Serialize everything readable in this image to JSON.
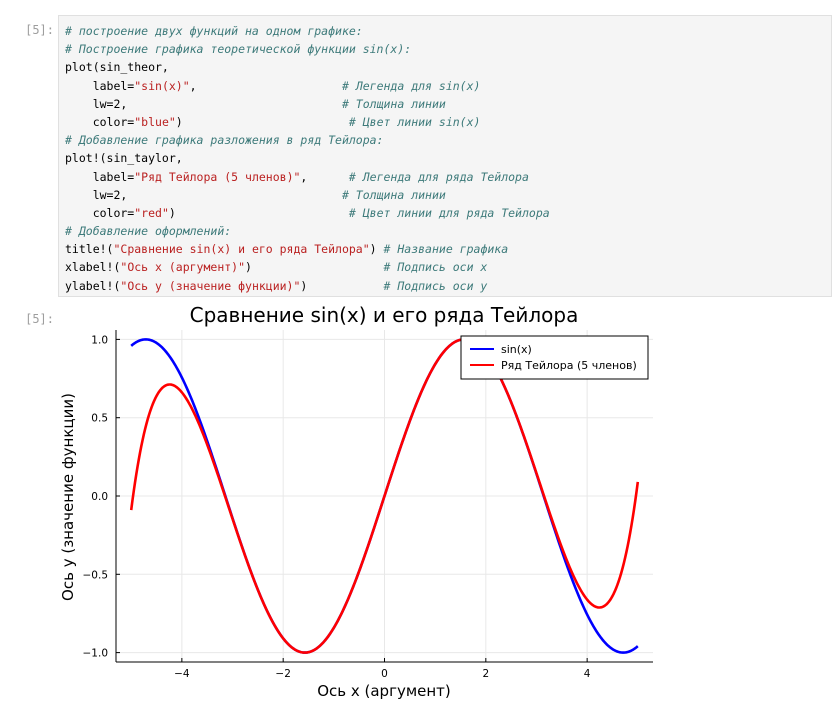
{
  "cell": {
    "in_prompt": "[5]:",
    "out_prompt": "[5]:",
    "code_lines": [
      [
        {
          "t": "# построение двух функций на одном графике:",
          "c": "cm"
        }
      ],
      [
        {
          "t": "# Построение графика теоретической функции sin(x):",
          "c": "cm"
        }
      ],
      [
        {
          "t": "plot(sin_theor,",
          "c": "kw"
        }
      ],
      [
        {
          "t": "    label=",
          "c": "kw"
        },
        {
          "t": "\"sin(x)\"",
          "c": "st"
        },
        {
          "t": ",                     ",
          "c": "kw"
        },
        {
          "t": "# Легенда для sin(x)",
          "c": "cm"
        }
      ],
      [
        {
          "t": "    lw=2,                               ",
          "c": "kw"
        },
        {
          "t": "# Толщина линии",
          "c": "cm"
        }
      ],
      [
        {
          "t": "    color=",
          "c": "kw"
        },
        {
          "t": "\"blue\"",
          "c": "st"
        },
        {
          "t": ")                        ",
          "c": "kw"
        },
        {
          "t": "# Цвет линии sin(x)",
          "c": "cm"
        }
      ],
      [
        {
          "t": "# Добавление графика разложения в ряд Тейлора:",
          "c": "cm"
        }
      ],
      [
        {
          "t": "plot!(sin_taylor,",
          "c": "kw"
        }
      ],
      [
        {
          "t": "    label=",
          "c": "kw"
        },
        {
          "t": "\"Ряд Тейлора (5 членов)\"",
          "c": "st"
        },
        {
          "t": ",      ",
          "c": "kw"
        },
        {
          "t": "# Легенда для ряда Тейлора",
          "c": "cm"
        }
      ],
      [
        {
          "t": "    lw=2,                               ",
          "c": "kw"
        },
        {
          "t": "# Толщина линии",
          "c": "cm"
        }
      ],
      [
        {
          "t": "    color=",
          "c": "kw"
        },
        {
          "t": "\"red\"",
          "c": "st"
        },
        {
          "t": ")                         ",
          "c": "kw"
        },
        {
          "t": "# Цвет линии для ряда Тейлора",
          "c": "cm"
        }
      ],
      [
        {
          "t": "# Добавление оформлений:",
          "c": "cm"
        }
      ],
      [
        {
          "t": "title!(",
          "c": "kw"
        },
        {
          "t": "\"Сравнение sin(x) и его ряда Тейлора\"",
          "c": "st"
        },
        {
          "t": ") ",
          "c": "kw"
        },
        {
          "t": "# Название графика",
          "c": "cm"
        }
      ],
      [
        {
          "t": "xlabel!(",
          "c": "kw"
        },
        {
          "t": "\"Ось x (аргумент)\"",
          "c": "st"
        },
        {
          "t": ")                   ",
          "c": "kw"
        },
        {
          "t": "# Подпись оси x",
          "c": "cm"
        }
      ],
      [
        {
          "t": "ylabel!(",
          "c": "kw"
        },
        {
          "t": "\"Ось y (значение функции)\"",
          "c": "st"
        },
        {
          "t": ")           ",
          "c": "kw"
        },
        {
          "t": "# Подпись оси y",
          "c": "cm"
        }
      ]
    ]
  },
  "chart_data": {
    "type": "line",
    "title": "Сравнение sin(x) и его ряда Тейлора",
    "xlabel": "Ось x (аргумент)",
    "ylabel": "Ось y (значение функции)",
    "xlim": [
      -5.3,
      5.3
    ],
    "ylim": [
      -1.06,
      1.06
    ],
    "grid": true,
    "legend_position": "top-right",
    "xticks": [
      -4,
      -2,
      0,
      2,
      4
    ],
    "xtick_labels": [
      "−4",
      "−2",
      "0",
      "2",
      "4"
    ],
    "yticks": [
      -1.0,
      -0.5,
      0.0,
      0.5,
      1.0
    ],
    "ytick_labels": [
      "−1.0",
      "−0.5",
      "0.0",
      "0.5",
      "1.0"
    ],
    "series": [
      {
        "name": "sin(x)",
        "color": "#0000ff",
        "x": [
          -5.0,
          -4.5,
          -4.0,
          -3.5,
          -3.0,
          -2.5,
          -2.0,
          -1.5,
          -1.0,
          -0.5,
          0.0,
          0.5,
          1.0,
          1.5,
          2.0,
          2.5,
          3.0,
          3.5,
          4.0,
          4.5,
          5.0
        ],
        "y": [
          0.959,
          0.978,
          0.757,
          0.351,
          -0.141,
          -0.598,
          -0.909,
          -0.997,
          -0.841,
          -0.479,
          0.0,
          0.479,
          0.841,
          0.997,
          0.909,
          0.598,
          0.141,
          -0.351,
          -0.757,
          -0.978,
          -0.959
        ]
      },
      {
        "name": "Ряд Тейлора (5 членов)",
        "color": "#ff0000",
        "x": [
          -5.0,
          -4.5,
          -4.0,
          -3.5,
          -3.0,
          -2.5,
          -2.0,
          -1.5,
          -1.0,
          -0.5,
          0.0,
          0.5,
          1.0,
          1.5,
          2.0,
          2.5,
          3.0,
          3.5,
          4.0,
          4.5,
          5.0
        ],
        "y": [
          -0.087,
          0.588,
          0.705,
          0.385,
          -0.134,
          -0.596,
          -0.909,
          -0.997,
          -0.841,
          -0.479,
          0.0,
          0.479,
          0.841,
          0.997,
          0.909,
          0.596,
          0.134,
          -0.385,
          -0.705,
          -0.588,
          0.087
        ]
      }
    ]
  }
}
